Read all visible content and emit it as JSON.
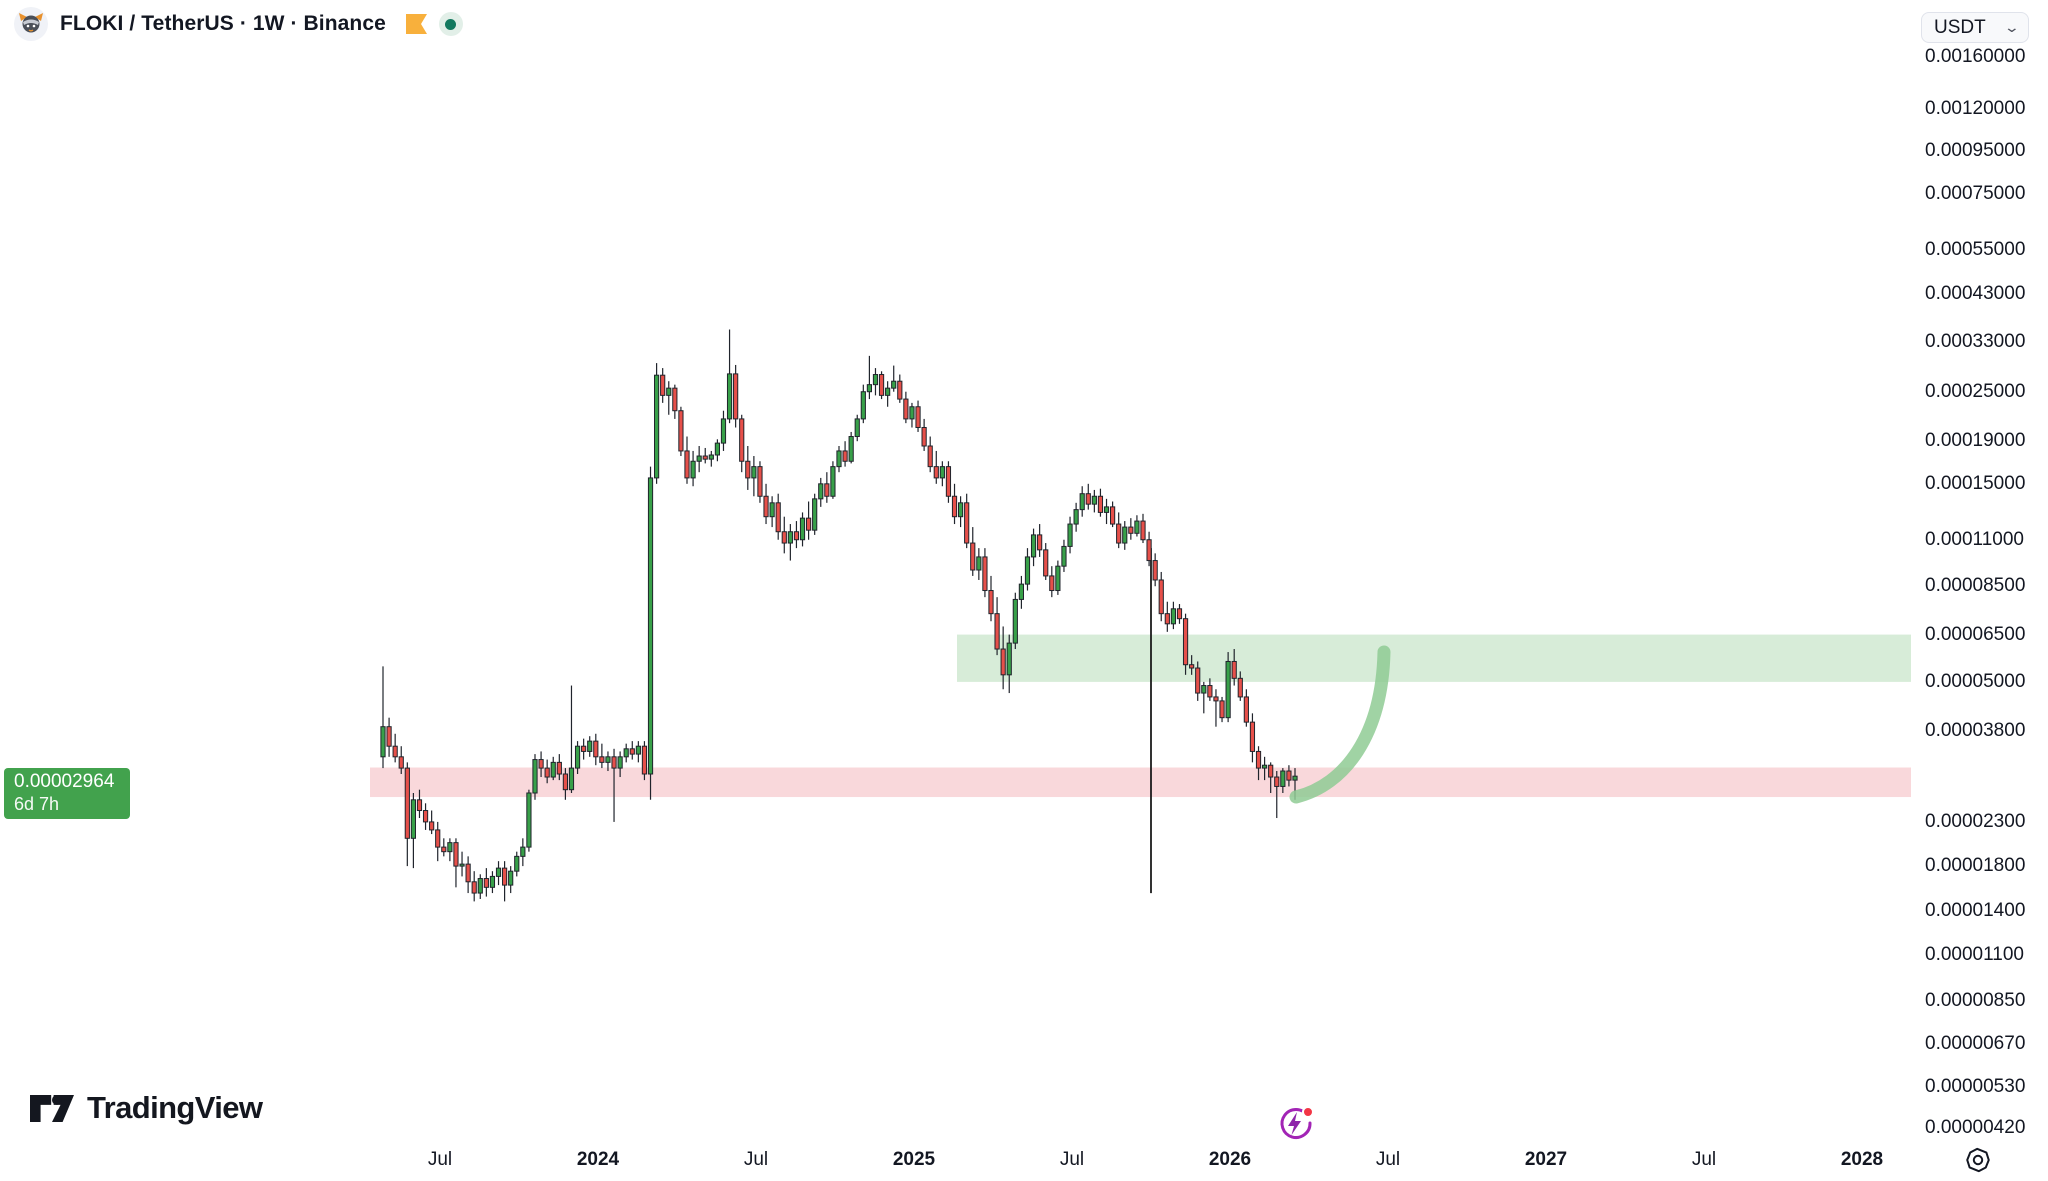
{
  "header": {
    "symbol_title": "FLOKI / TetherUS · 1W · Binance",
    "logo_icon": "floki-viking-dog-icon",
    "flag_icon": "orange-flag-icon",
    "market_status_icon": "market-open-green-dot"
  },
  "currency_selector": {
    "value": "USDT",
    "chevron": "⌄"
  },
  "price_label": {
    "price": "0.00002964",
    "countdown": "6d 7h",
    "bg_color": "#42a24d",
    "text_color": "#ffffff"
  },
  "footer": {
    "logo_text": "TradingView"
  },
  "icons": {
    "settings": "gear-icon",
    "spark": "lightning-circle-icon"
  },
  "chart_data": {
    "type": "candlestick",
    "title": "FLOKI / TetherUS",
    "exchange": "Binance",
    "timeframe": "1W",
    "price_scale": "log",
    "grid": "off",
    "colors": {
      "up": "#38a049",
      "down": "#e6504a",
      "outline": "#20242c",
      "wick": "#20242c",
      "target_zone": "#d7ecd8",
      "entry_zone": "#f9d8db",
      "arrow": "#8fcb94",
      "trend_line": "#1c1c1c"
    },
    "price_axis_ticks": [
      "0.00160000",
      "0.00120000",
      "0.00095000",
      "0.00075000",
      "0.00055000",
      "0.00043000",
      "0.00033000",
      "0.00025000",
      "0.00019000",
      "0.00015000",
      "0.00011000",
      "0.00008500",
      "0.00006500",
      "0.00005000",
      "0.00003800",
      "0.00002300",
      "0.00001800",
      "0.00001400",
      "0.00001100",
      "0.00000850",
      "0.00000670",
      "0.00000530",
      "0.00000420"
    ],
    "time_axis_ticks": [
      "Jul",
      "2024",
      "Jul",
      "2025",
      "Jul",
      "2026",
      "Jul",
      "2027",
      "Jul",
      "2028"
    ],
    "current_price": 2.964e-05,
    "zones": [
      {
        "name": "supply-target-zone",
        "price_from": 5e-05,
        "price_to": 6.5e-05,
        "extends": "to-right-edge"
      },
      {
        "name": "demand-entry-zone",
        "price_from": 2.64e-05,
        "price_to": 3.11e-05,
        "extends": "to-right-edge"
      }
    ],
    "drawings": [
      {
        "name": "vertical-line",
        "at": "late-2025",
        "price_from": 1.55e-05,
        "price_to": 0.000105
      },
      {
        "name": "curved-arrow-up",
        "from_price": 2.65e-05,
        "to_price": 5.75e-05,
        "meaning": "projected bounce from entry zone to target zone"
      }
    ],
    "candles_unit": 1e-05,
    "candles_ohlc": [
      [
        3.3,
        5.45,
        3.1,
        3.9
      ],
      [
        3.9,
        4.1,
        3.3,
        3.5
      ],
      [
        3.5,
        3.75,
        3.2,
        3.3
      ],
      [
        3.3,
        3.5,
        3.0,
        3.1
      ],
      [
        3.1,
        3.2,
        1.8,
        2.1
      ],
      [
        2.1,
        2.7,
        1.78,
        2.6
      ],
      [
        2.6,
        2.75,
        2.35,
        2.45
      ],
      [
        2.45,
        2.55,
        2.2,
        2.3
      ],
      [
        2.3,
        2.45,
        2.15,
        2.2
      ],
      [
        2.2,
        2.3,
        1.85,
        2.0
      ],
      [
        2.0,
        2.1,
        1.9,
        1.95
      ],
      [
        1.95,
        2.1,
        1.85,
        2.05
      ],
      [
        2.05,
        2.1,
        1.6,
        1.8
      ],
      [
        1.8,
        1.95,
        1.7,
        1.82
      ],
      [
        1.82,
        1.9,
        1.55,
        1.65
      ],
      [
        1.65,
        1.75,
        1.48,
        1.55
      ],
      [
        1.55,
        1.72,
        1.5,
        1.68
      ],
      [
        1.68,
        1.78,
        1.52,
        1.6
      ],
      [
        1.6,
        1.75,
        1.55,
        1.7
      ],
      [
        1.7,
        1.85,
        1.62,
        1.78
      ],
      [
        1.78,
        1.85,
        1.48,
        1.62
      ],
      [
        1.62,
        1.8,
        1.55,
        1.75
      ],
      [
        1.75,
        1.95,
        1.7,
        1.9
      ],
      [
        1.9,
        2.1,
        1.8,
        2.0
      ],
      [
        2.0,
        2.75,
        1.95,
        2.7
      ],
      [
        2.7,
        3.35,
        2.6,
        3.25
      ],
      [
        3.25,
        3.4,
        2.95,
        3.1
      ],
      [
        3.1,
        3.25,
        2.85,
        2.95
      ],
      [
        2.95,
        3.3,
        2.9,
        3.2
      ],
      [
        3.2,
        3.35,
        2.9,
        3.0
      ],
      [
        3.0,
        3.1,
        2.6,
        2.75
      ],
      [
        2.75,
        4.9,
        2.7,
        3.1
      ],
      [
        3.1,
        3.6,
        3.0,
        3.5
      ],
      [
        3.5,
        3.65,
        3.25,
        3.4
      ],
      [
        3.4,
        3.7,
        3.3,
        3.6
      ],
      [
        3.6,
        3.75,
        3.15,
        3.3
      ],
      [
        3.3,
        3.55,
        3.1,
        3.2
      ],
      [
        3.2,
        3.4,
        3.05,
        3.3
      ],
      [
        3.3,
        3.45,
        2.3,
        3.1
      ],
      [
        3.1,
        3.4,
        2.95,
        3.3
      ],
      [
        3.3,
        3.55,
        3.2,
        3.45
      ],
      [
        3.45,
        3.6,
        3.25,
        3.35
      ],
      [
        3.35,
        3.6,
        3.2,
        3.5
      ],
      [
        3.5,
        3.6,
        2.9,
        3.0
      ],
      [
        3.0,
        16.5,
        2.6,
        15.5
      ],
      [
        15.5,
        29.3,
        15.0,
        27.4
      ],
      [
        27.4,
        28.5,
        23.5,
        24.5
      ],
      [
        24.5,
        26.5,
        22.0,
        25.5
      ],
      [
        25.5,
        26.0,
        21.5,
        22.5
      ],
      [
        22.5,
        23.0,
        17.5,
        18.0
      ],
      [
        18.0,
        19.5,
        15.0,
        15.5
      ],
      [
        15.5,
        18.0,
        14.8,
        17.0
      ],
      [
        17.0,
        18.5,
        16.0,
        17.5
      ],
      [
        17.5,
        18.3,
        16.8,
        17.2
      ],
      [
        17.2,
        18.0,
        16.5,
        17.6
      ],
      [
        17.6,
        19.2,
        17.0,
        18.8
      ],
      [
        18.8,
        22.5,
        18.0,
        21.5
      ],
      [
        21.5,
        35.3,
        21.0,
        27.6
      ],
      [
        27.6,
        29.0,
        20.5,
        21.5
      ],
      [
        21.5,
        22.0,
        16.0,
        17.0
      ],
      [
        17.0,
        18.5,
        14.5,
        15.5
      ],
      [
        15.5,
        17.5,
        14.0,
        16.5
      ],
      [
        16.5,
        17.0,
        13.5,
        14.0
      ],
      [
        14.0,
        15.0,
        12.0,
        12.5
      ],
      [
        12.5,
        14.0,
        11.8,
        13.5
      ],
      [
        13.5,
        14.2,
        11.0,
        11.5
      ],
      [
        11.5,
        12.5,
        10.2,
        10.8
      ],
      [
        10.8,
        12.0,
        9.8,
        11.5
      ],
      [
        11.5,
        12.2,
        10.5,
        11.0
      ],
      [
        11.0,
        12.8,
        10.6,
        12.4
      ],
      [
        12.4,
        13.6,
        11.0,
        11.6
      ],
      [
        11.6,
        14.2,
        11.3,
        13.8
      ],
      [
        13.8,
        15.5,
        13.2,
        15.0
      ],
      [
        15.0,
        16.0,
        13.5,
        14.0
      ],
      [
        14.0,
        17.0,
        13.8,
        16.5
      ],
      [
        16.5,
        18.5,
        16.0,
        18.0
      ],
      [
        18.0,
        19.0,
        16.5,
        17.0
      ],
      [
        17.0,
        20.0,
        16.8,
        19.5
      ],
      [
        19.5,
        22.0,
        19.0,
        21.5
      ],
      [
        21.5,
        26.0,
        21.0,
        25.0
      ],
      [
        25.0,
        30.5,
        24.0,
        26.0
      ],
      [
        26.0,
        28.5,
        24.5,
        27.5
      ],
      [
        27.5,
        28.0,
        24.0,
        24.5
      ],
      [
        24.5,
        26.5,
        23.0,
        25.5
      ],
      [
        25.5,
        28.9,
        25.0,
        26.5
      ],
      [
        26.5,
        27.5,
        23.5,
        24.0
      ],
      [
        24.0,
        25.0,
        21.0,
        21.5
      ],
      [
        21.5,
        23.5,
        20.5,
        23.0
      ],
      [
        23.0,
        23.8,
        20.0,
        20.5
      ],
      [
        20.5,
        21.5,
        18.0,
        18.5
      ],
      [
        18.5,
        19.5,
        16.0,
        16.5
      ],
      [
        16.5,
        18.0,
        15.0,
        15.5
      ],
      [
        15.5,
        17.0,
        14.8,
        16.5
      ],
      [
        16.5,
        17.0,
        13.5,
        14.0
      ],
      [
        14.0,
        15.0,
        12.0,
        12.5
      ],
      [
        12.5,
        14.0,
        11.8,
        13.5
      ],
      [
        13.5,
        14.2,
        10.5,
        10.8
      ],
      [
        10.8,
        11.8,
        9.0,
        9.3
      ],
      [
        9.3,
        10.5,
        8.8,
        10.0
      ],
      [
        10.0,
        10.5,
        8.0,
        8.3
      ],
      [
        8.3,
        9.0,
        7.0,
        7.3
      ],
      [
        7.3,
        8.0,
        5.8,
        6.0
      ],
      [
        6.0,
        6.8,
        4.8,
        5.2
      ],
      [
        5.2,
        6.5,
        4.7,
        6.2
      ],
      [
        6.2,
        8.2,
        6.0,
        7.9
      ],
      [
        7.9,
        9.0,
        7.5,
        8.6
      ],
      [
        8.6,
        10.5,
        8.3,
        10.0
      ],
      [
        10.0,
        11.7,
        9.5,
        11.3
      ],
      [
        11.3,
        12.0,
        10.0,
        10.4
      ],
      [
        10.4,
        10.8,
        8.8,
        9.0
      ],
      [
        9.0,
        9.5,
        8.0,
        8.3
      ],
      [
        8.3,
        9.8,
        8.1,
        9.5
      ],
      [
        9.5,
        11.0,
        9.2,
        10.6
      ],
      [
        10.6,
        12.5,
        10.2,
        12.0
      ],
      [
        12.0,
        13.5,
        11.5,
        13.0
      ],
      [
        13.0,
        14.8,
        12.5,
        14.2
      ],
      [
        14.2,
        15.0,
        13.0,
        13.4
      ],
      [
        13.4,
        14.5,
        12.8,
        14.0
      ],
      [
        14.0,
        14.6,
        12.5,
        12.8
      ],
      [
        12.8,
        13.8,
        12.0,
        13.2
      ],
      [
        13.2,
        13.6,
        11.8,
        12.0
      ],
      [
        12.0,
        12.8,
        10.5,
        10.8
      ],
      [
        10.8,
        12.2,
        10.4,
        11.8
      ],
      [
        11.8,
        12.4,
        11.0,
        11.4
      ],
      [
        11.4,
        12.6,
        11.2,
        12.2
      ],
      [
        12.2,
        12.7,
        10.8,
        11.0
      ],
      [
        11.0,
        11.5,
        9.5,
        9.8
      ],
      [
        9.8,
        10.2,
        8.5,
        8.8
      ],
      [
        8.8,
        9.2,
        7.0,
        7.3
      ],
      [
        7.3,
        7.8,
        6.6,
        6.9
      ],
      [
        6.9,
        7.8,
        6.7,
        7.5
      ],
      [
        7.5,
        7.7,
        6.9,
        7.1
      ],
      [
        7.1,
        7.3,
        5.2,
        5.5
      ],
      [
        5.5,
        5.8,
        5.2,
        5.4
      ],
      [
        5.4,
        5.6,
        4.5,
        4.7
      ],
      [
        4.7,
        5.0,
        4.2,
        4.9
      ],
      [
        4.9,
        5.1,
        4.5,
        4.6
      ],
      [
        4.6,
        4.8,
        3.9,
        4.5
      ],
      [
        4.5,
        4.6,
        4.0,
        4.1
      ],
      [
        4.1,
        5.9,
        4.0,
        5.6
      ],
      [
        5.6,
        6.0,
        4.9,
        5.1
      ],
      [
        5.1,
        5.3,
        4.5,
        4.6
      ],
      [
        4.6,
        4.8,
        3.9,
        4.0
      ],
      [
        4.0,
        4.2,
        3.2,
        3.4
      ],
      [
        3.4,
        3.5,
        2.9,
        3.1
      ],
      [
        3.1,
        3.3,
        2.9,
        3.15
      ],
      [
        3.15,
        3.2,
        2.7,
        2.95
      ],
      [
        2.95,
        3.05,
        2.35,
        2.8
      ],
      [
        2.8,
        3.1,
        2.7,
        3.05
      ],
      [
        3.05,
        3.15,
        2.8,
        2.9
      ],
      [
        2.9,
        3.1,
        2.6,
        2.964
      ]
    ]
  }
}
